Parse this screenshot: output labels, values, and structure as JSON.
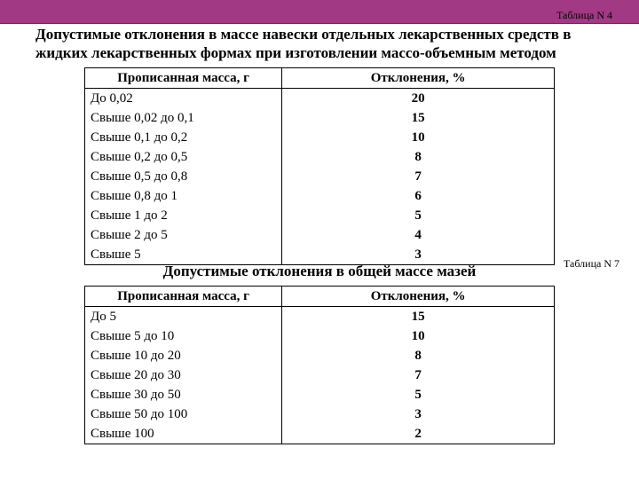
{
  "band_color": "#a13984",
  "label_top": "Таблица N 4",
  "title": "Допустимые отклонения в массе навески отдельных лекарственных средств в жидких лекарственных формах при изготовлении массо-объемным методом",
  "table1": {
    "col1_header": "Прописанная масса, г",
    "col2_header": "Отклонения, %",
    "rows": [
      {
        "mass": "До 0,02",
        "dev": "20"
      },
      {
        "mass": "Свыше 0,02 до 0,1",
        "dev": "15"
      },
      {
        "mass": "Свыше 0,1 до 0,2",
        "dev": "10"
      },
      {
        "mass": "Свыше 0,2 до 0,5",
        "dev": "8"
      },
      {
        "mass": "Свыше 0,5 до 0,8",
        "dev": "7"
      },
      {
        "mass": "Свыше 0,8 до 1",
        "dev": "6"
      },
      {
        "mass": "Свыше 1 до 2",
        "dev": "5"
      },
      {
        "mass": "Свыше 2 до 5",
        "dev": "4"
      },
      {
        "mass": "Свыше 5",
        "dev": "3"
      }
    ]
  },
  "label_mid": "Таблица N 7",
  "subtitle": "Допустимые отклонения в общей массе мазей",
  "table2": {
    "col1_header": "Прописанная масса, г",
    "col2_header": "Отклонения, %",
    "rows": [
      {
        "mass": "До 5",
        "dev": "15"
      },
      {
        "mass": "Свыше 5 до 10",
        "dev": "10"
      },
      {
        "mass": "Свыше 10 до 20",
        "dev": "8"
      },
      {
        "mass": "Свыше 20 до 30",
        "dev": "7"
      },
      {
        "mass": "Свыше 30 до 50",
        "dev": "5"
      },
      {
        "mass": "Свыше 50 до 100",
        "dev": "3"
      },
      {
        "mass": "Свыше 100",
        "dev": "2"
      }
    ]
  }
}
